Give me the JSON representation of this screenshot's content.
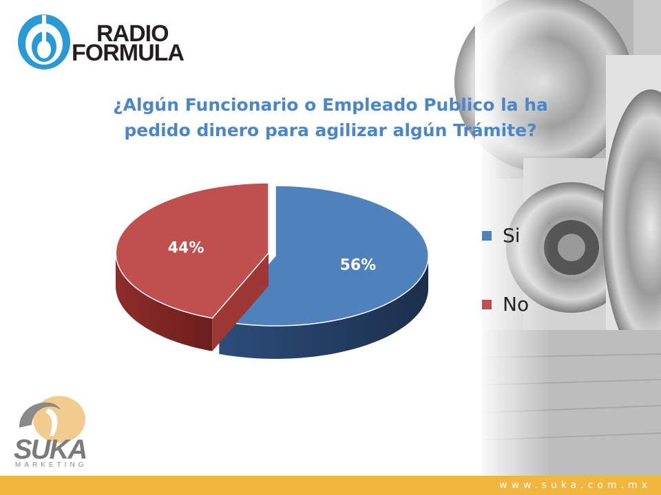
{
  "header": {
    "logo_line1": "RADIO",
    "logo_line2": "FORMULA"
  },
  "chart_data": {
    "type": "pie",
    "title": "¿Algún Funcionario o Empleado Publico la ha pedido dinero para agilizar algún Trámite?",
    "categories": [
      "Si",
      "No"
    ],
    "values": [
      56,
      44
    ],
    "labels": [
      "56%",
      "44%"
    ],
    "colors": [
      "#4f81bd",
      "#c0504d"
    ],
    "legend_position": "right"
  },
  "footer": {
    "brand": "SUKA",
    "brand_sub": "MARKETING",
    "url": "www.suka.com.mx",
    "bar_color": "#f0b63e"
  }
}
